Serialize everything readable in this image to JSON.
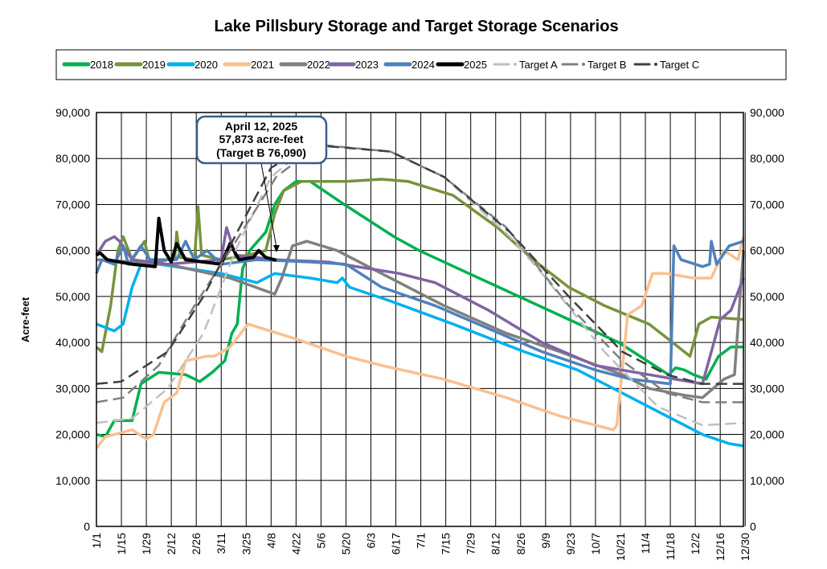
{
  "chart_data": {
    "type": "line",
    "title": "Lake Pillsbury Storage and Target Storage Scenarios",
    "ylabel": "Acre-feet",
    "xlabel": "",
    "ylim": [
      0,
      90000
    ],
    "yticks": [
      0,
      10000,
      20000,
      30000,
      40000,
      50000,
      60000,
      70000,
      80000,
      90000
    ],
    "ytick_labels": [
      "0",
      "10,000",
      "20,000",
      "30,000",
      "40,000",
      "50,000",
      "60,000",
      "70,000",
      "80,000",
      "90,000"
    ],
    "xlim_day_of_year": [
      0,
      363
    ],
    "xtick_labels": [
      "1/1",
      "1/15",
      "1/29",
      "2/12",
      "2/26",
      "3/11",
      "3/25",
      "4/8",
      "4/22",
      "5/6",
      "5/20",
      "6/3",
      "6/17",
      "7/1",
      "7/15",
      "7/29",
      "8/12",
      "8/26",
      "9/9",
      "9/23",
      "10/7",
      "10/21",
      "11/4",
      "11/18",
      "12/2",
      "12/16",
      "12/30"
    ],
    "grid": true,
    "legend_position": "top",
    "annotation": {
      "lines": [
        "April 12, 2025",
        "57,873 acre-feet",
        "(Target B 76,090)"
      ],
      "day": 101,
      "value": 57873
    },
    "series": [
      {
        "name": "2018",
        "color": "#00b050",
        "dash": false,
        "points": [
          [
            0,
            20000
          ],
          [
            5,
            19500
          ],
          [
            10,
            23000
          ],
          [
            20,
            23000
          ],
          [
            25,
            31000
          ],
          [
            35,
            33500
          ],
          [
            50,
            33000
          ],
          [
            58,
            31500
          ],
          [
            65,
            33500
          ],
          [
            72,
            36000
          ],
          [
            76,
            42000
          ],
          [
            79,
            44000
          ],
          [
            82,
            56000
          ],
          [
            86,
            60000
          ],
          [
            95,
            64000
          ],
          [
            100,
            70000
          ],
          [
            105,
            73000
          ],
          [
            112,
            75000
          ],
          [
            120,
            75000
          ],
          [
            139,
            70000
          ],
          [
            167,
            63000
          ],
          [
            181,
            60000
          ],
          [
            209,
            55000
          ],
          [
            237,
            50000
          ],
          [
            265,
            45000
          ],
          [
            293,
            40000
          ],
          [
            307,
            36500
          ],
          [
            321,
            33000
          ],
          [
            325,
            34500
          ],
          [
            330,
            34000
          ],
          [
            335,
            33000
          ],
          [
            342,
            32000
          ],
          [
            349,
            37000
          ],
          [
            356,
            39000
          ],
          [
            363,
            39000
          ]
        ]
      },
      {
        "name": "2019",
        "color": "#77933c",
        "dash": false,
        "points": [
          [
            0,
            39000
          ],
          [
            3,
            38000
          ],
          [
            8,
            48000
          ],
          [
            12,
            60000
          ],
          [
            15,
            63000
          ],
          [
            20,
            58000
          ],
          [
            27,
            62000
          ],
          [
            30,
            57000
          ],
          [
            40,
            58000
          ],
          [
            44,
            58500
          ],
          [
            45,
            64000
          ],
          [
            47,
            58500
          ],
          [
            55,
            58000
          ],
          [
            57,
            69500
          ],
          [
            59,
            59000
          ],
          [
            70,
            58000
          ],
          [
            85,
            59000
          ],
          [
            95,
            60000
          ],
          [
            100,
            68000
          ],
          [
            105,
            73000
          ],
          [
            115,
            75000
          ],
          [
            140,
            75000
          ],
          [
            160,
            75500
          ],
          [
            175,
            75000
          ],
          [
            200,
            72000
          ],
          [
            225,
            65000
          ],
          [
            245,
            58000
          ],
          [
            265,
            52000
          ],
          [
            285,
            48000
          ],
          [
            310,
            44000
          ],
          [
            320,
            41000
          ],
          [
            333,
            37000
          ],
          [
            338,
            44000
          ],
          [
            345,
            45500
          ],
          [
            363,
            45000
          ]
        ]
      },
      {
        "name": "2020",
        "color": "#00b0f0",
        "dash": false,
        "points": [
          [
            0,
            44000
          ],
          [
            10,
            42500
          ],
          [
            15,
            44000
          ],
          [
            20,
            52000
          ],
          [
            25,
            57000
          ],
          [
            35,
            57000
          ],
          [
            70,
            55000
          ],
          [
            90,
            53000
          ],
          [
            100,
            55000
          ],
          [
            120,
            54000
          ],
          [
            135,
            53000
          ],
          [
            138,
            54000
          ],
          [
            142,
            52000
          ],
          [
            165,
            49000
          ],
          [
            200,
            44000
          ],
          [
            240,
            38000
          ],
          [
            270,
            34000
          ],
          [
            295,
            29000
          ],
          [
            320,
            24000
          ],
          [
            340,
            20000
          ],
          [
            355,
            18000
          ],
          [
            363,
            17500
          ]
        ]
      },
      {
        "name": "2021",
        "color": "#fac090",
        "dash": false,
        "points": [
          [
            0,
            17000
          ],
          [
            5,
            19500
          ],
          [
            20,
            21000
          ],
          [
            28,
            19000
          ],
          [
            32,
            20000
          ],
          [
            38,
            27000
          ],
          [
            45,
            29000
          ],
          [
            50,
            36000
          ],
          [
            62,
            37000
          ],
          [
            66,
            37000
          ],
          [
            75,
            39000
          ],
          [
            85,
            44000
          ],
          [
            110,
            41000
          ],
          [
            140,
            37000
          ],
          [
            160,
            35000
          ],
          [
            195,
            32000
          ],
          [
            230,
            28000
          ],
          [
            260,
            24000
          ],
          [
            290,
            21000
          ],
          [
            292,
            22000
          ],
          [
            298,
            46000
          ],
          [
            306,
            48000
          ],
          [
            312,
            55000
          ],
          [
            320,
            55000
          ],
          [
            335,
            54000
          ],
          [
            345,
            54000
          ],
          [
            352,
            60000
          ],
          [
            360,
            58000
          ],
          [
            363,
            63000
          ]
        ]
      },
      {
        "name": "2022",
        "color": "#808080",
        "dash": false,
        "points": [
          [
            0,
            58000
          ],
          [
            40,
            57000
          ],
          [
            75,
            54000
          ],
          [
            100,
            50500
          ],
          [
            104,
            54000
          ],
          [
            110,
            61000
          ],
          [
            118,
            62000
          ],
          [
            135,
            60000
          ],
          [
            160,
            55000
          ],
          [
            195,
            48000
          ],
          [
            230,
            42000
          ],
          [
            260,
            38000
          ],
          [
            295,
            33000
          ],
          [
            310,
            30000
          ],
          [
            330,
            28500
          ],
          [
            340,
            28000
          ],
          [
            352,
            32000
          ],
          [
            358,
            33000
          ],
          [
            363,
            60000
          ]
        ]
      },
      {
        "name": "2023",
        "color": "#8064a2",
        "dash": false,
        "points": [
          [
            0,
            59000
          ],
          [
            5,
            62000
          ],
          [
            10,
            63000
          ],
          [
            13,
            62000
          ],
          [
            20,
            58000
          ],
          [
            40,
            57000
          ],
          [
            70,
            58000
          ],
          [
            73,
            65000
          ],
          [
            78,
            59000
          ],
          [
            100,
            58000
          ],
          [
            130,
            57500
          ],
          [
            170,
            55000
          ],
          [
            190,
            53000
          ],
          [
            220,
            47000
          ],
          [
            250,
            40000
          ],
          [
            280,
            35000
          ],
          [
            310,
            33000
          ],
          [
            340,
            31000
          ],
          [
            350,
            45000
          ],
          [
            356,
            47000
          ],
          [
            363,
            54000
          ]
        ]
      },
      {
        "name": "2024",
        "color": "#4f81bd",
        "dash": false,
        "points": [
          [
            0,
            55000
          ],
          [
            3,
            58000
          ],
          [
            10,
            57000
          ],
          [
            15,
            61000
          ],
          [
            18,
            57000
          ],
          [
            25,
            61000
          ],
          [
            30,
            58000
          ],
          [
            45,
            58000
          ],
          [
            50,
            62000
          ],
          [
            55,
            58000
          ],
          [
            62,
            60000
          ],
          [
            70,
            57000
          ],
          [
            90,
            58000
          ],
          [
            120,
            57500
          ],
          [
            140,
            57000
          ],
          [
            160,
            52000
          ],
          [
            190,
            48000
          ],
          [
            220,
            43000
          ],
          [
            250,
            38000
          ],
          [
            280,
            34000
          ],
          [
            300,
            32000
          ],
          [
            322,
            31000
          ],
          [
            324,
            61000
          ],
          [
            328,
            58000
          ],
          [
            340,
            56500
          ],
          [
            344,
            57000
          ],
          [
            345,
            62000
          ],
          [
            348,
            57000
          ],
          [
            355,
            61000
          ],
          [
            363,
            62000
          ]
        ]
      },
      {
        "name": "2025",
        "color": "#000000",
        "dash": false,
        "width": 4,
        "points": [
          [
            0,
            59000
          ],
          [
            2,
            59500
          ],
          [
            6,
            58000
          ],
          [
            20,
            57000
          ],
          [
            33,
            56500
          ],
          [
            35,
            67000
          ],
          [
            38,
            60000
          ],
          [
            42,
            57500
          ],
          [
            45,
            61500
          ],
          [
            50,
            58000
          ],
          [
            60,
            57500
          ],
          [
            70,
            57000
          ],
          [
            75,
            61500
          ],
          [
            80,
            58000
          ],
          [
            88,
            58500
          ],
          [
            91,
            60000
          ],
          [
            95,
            58500
          ],
          [
            101,
            57873
          ]
        ]
      },
      {
        "name": "Target A",
        "color": "#bfbfbf",
        "dash": true,
        "points": [
          [
            0,
            22500
          ],
          [
            20,
            23500
          ],
          [
            40,
            30000
          ],
          [
            60,
            42000
          ],
          [
            78,
            60000
          ],
          [
            98,
            76000
          ],
          [
            120,
            83000
          ],
          [
            165,
            81500
          ],
          [
            195,
            76000
          ],
          [
            232,
            63000
          ],
          [
            250,
            55000
          ],
          [
            285,
            38000
          ],
          [
            315,
            26000
          ],
          [
            340,
            22000
          ],
          [
            363,
            22500
          ]
        ]
      },
      {
        "name": "Target B",
        "color": "#808080",
        "dash": true,
        "points": [
          [
            0,
            27000
          ],
          [
            15,
            28000
          ],
          [
            35,
            35000
          ],
          [
            55,
            48000
          ],
          [
            75,
            60000
          ],
          [
            101,
            76090
          ],
          [
            125,
            83000
          ],
          [
            165,
            81500
          ],
          [
            195,
            76000
          ],
          [
            230,
            65000
          ],
          [
            265,
            48000
          ],
          [
            295,
            36000
          ],
          [
            320,
            29000
          ],
          [
            340,
            27000
          ],
          [
            363,
            27000
          ]
        ]
      },
      {
        "name": "Target C",
        "color": "#404040",
        "dash": true,
        "points": [
          [
            0,
            31000
          ],
          [
            14,
            31500
          ],
          [
            40,
            38000
          ],
          [
            60,
            50000
          ],
          [
            98,
            78000
          ],
          [
            120,
            83000
          ],
          [
            165,
            81500
          ],
          [
            195,
            76000
          ],
          [
            232,
            64000
          ],
          [
            265,
            50000
          ],
          [
            295,
            38000
          ],
          [
            320,
            33000
          ],
          [
            340,
            31000
          ],
          [
            363,
            31000
          ]
        ]
      }
    ]
  }
}
